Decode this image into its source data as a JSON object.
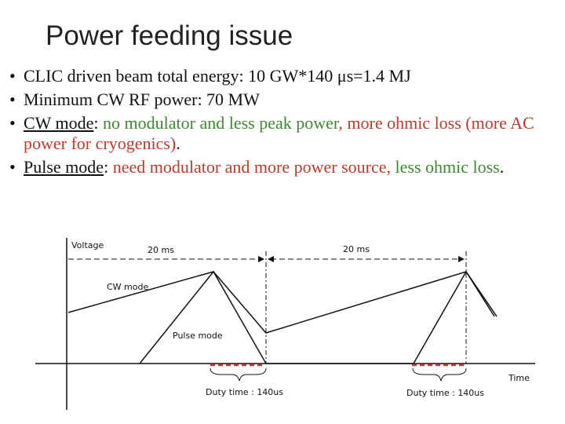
{
  "title": "Power feeding issue",
  "bullets": [
    {
      "text": "CLIC driven beam total energy: 10 GW*140 μs=1.4 MJ"
    },
    {
      "text": "Minimum CW RF power: 70 MW"
    },
    {
      "mode": "CW mode",
      "sep": ": ",
      "part1": "no modulator and less peak power",
      "comma": ", ",
      "part2": "more ohmic loss (more AC power for cryogenics)",
      "end": "."
    },
    {
      "mode": "Pulse mode",
      "sep": ": ",
      "part1": "need modulator and more power source",
      "comma": ", ",
      "part2": "less ohmic loss",
      "end": "."
    }
  ],
  "diagram": {
    "labels": {
      "voltage": "Voltage",
      "period1": "20 ms",
      "period2": "20 ms",
      "cw_mode": "CW mode",
      "pulse_mode": "Pulse mode",
      "time": "Time",
      "duty1": "Duty time : 140us",
      "duty2": "Duty time : 140us"
    },
    "colors": {
      "axis": "#111111",
      "waveform": "#111111",
      "duty_marker": "#c0392b"
    }
  }
}
